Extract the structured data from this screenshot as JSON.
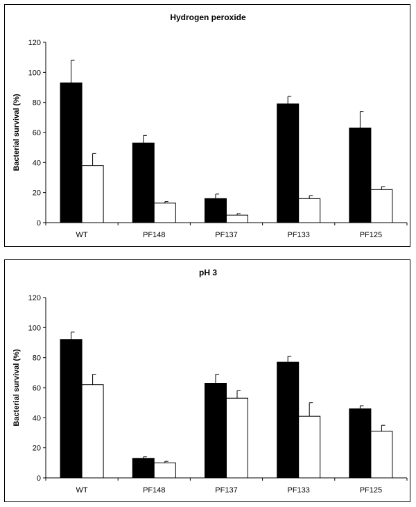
{
  "chart_data": [
    {
      "type": "bar",
      "title": "Hydrogen peroxide",
      "ylabel": "Bacterial survival (%)",
      "xlabel": "",
      "ylim": [
        0,
        120
      ],
      "yticks": [
        0,
        20,
        40,
        60,
        80,
        100,
        120
      ],
      "categories": [
        "WT",
        "PF148",
        "PF137",
        "PF133",
        "PF125"
      ],
      "grid": false,
      "legend": "none",
      "series": [
        {
          "color": "#000000",
          "values": [
            93,
            53,
            16,
            79,
            63
          ],
          "errors": [
            15,
            5,
            3,
            5,
            11
          ]
        },
        {
          "color": "#ffffff",
          "values": [
            38,
            13,
            5,
            16,
            22
          ],
          "errors": [
            8,
            1,
            1,
            2,
            2
          ]
        }
      ]
    },
    {
      "type": "bar",
      "title": "pH 3",
      "ylabel": "Bacterial survival (%)",
      "xlabel": "",
      "ylim": [
        0,
        120
      ],
      "yticks": [
        0,
        20,
        40,
        60,
        80,
        100,
        120
      ],
      "categories": [
        "WT",
        "PF148",
        "PF137",
        "PF133",
        "PF125"
      ],
      "grid": false,
      "legend": "none",
      "series": [
        {
          "color": "#000000",
          "values": [
            92,
            13,
            63,
            77,
            46
          ],
          "errors": [
            5,
            1,
            6,
            4,
            2
          ]
        },
        {
          "color": "#ffffff",
          "values": [
            62,
            10,
            53,
            41,
            31
          ],
          "errors": [
            7,
            1,
            5,
            9,
            4
          ]
        }
      ]
    }
  ]
}
